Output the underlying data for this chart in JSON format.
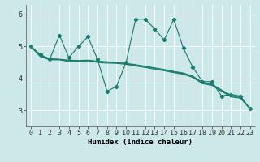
{
  "title": "",
  "xlabel": "Humidex (Indice chaleur)",
  "bg_color": "#cce8e8",
  "line_color": "#1a7a6e",
  "grid_color": "#ffffff",
  "xlim": [
    -0.5,
    23.5
  ],
  "ylim": [
    2.5,
    6.3
  ],
  "yticks": [
    3,
    4,
    5,
    6
  ],
  "xticks": [
    0,
    1,
    2,
    3,
    4,
    5,
    6,
    7,
    8,
    9,
    10,
    11,
    12,
    13,
    14,
    15,
    16,
    17,
    18,
    19,
    20,
    21,
    22,
    23
  ],
  "font_size": 6.0,
  "xlabel_fontsize": 6.5,
  "series_jagged": [
    5.0,
    4.75,
    4.6,
    5.35,
    4.65,
    5.0,
    5.3,
    4.6,
    3.6,
    3.75,
    4.5,
    5.85,
    5.85,
    5.55,
    5.2,
    5.85,
    4.95,
    4.35,
    3.9,
    3.9,
    3.45,
    3.5,
    3.45,
    3.05
  ],
  "series_smooth1": [
    5.0,
    4.72,
    4.62,
    4.6,
    4.57,
    4.56,
    4.57,
    4.54,
    4.52,
    4.5,
    4.47,
    4.43,
    4.38,
    4.33,
    4.28,
    4.22,
    4.17,
    4.07,
    3.88,
    3.82,
    3.64,
    3.48,
    3.42,
    3.05
  ],
  "series_smooth2": [
    5.0,
    4.7,
    4.6,
    4.59,
    4.55,
    4.54,
    4.56,
    4.52,
    4.5,
    4.49,
    4.46,
    4.41,
    4.36,
    4.31,
    4.26,
    4.2,
    4.15,
    4.05,
    3.86,
    3.8,
    3.62,
    3.45,
    3.4,
    3.05
  ],
  "series_smooth3": [
    5.0,
    4.68,
    4.58,
    4.58,
    4.53,
    4.52,
    4.55,
    4.5,
    4.48,
    4.47,
    4.44,
    4.39,
    4.34,
    4.29,
    4.24,
    4.18,
    4.13,
    4.03,
    3.84,
    3.78,
    3.6,
    3.42,
    3.38,
    3.05
  ]
}
